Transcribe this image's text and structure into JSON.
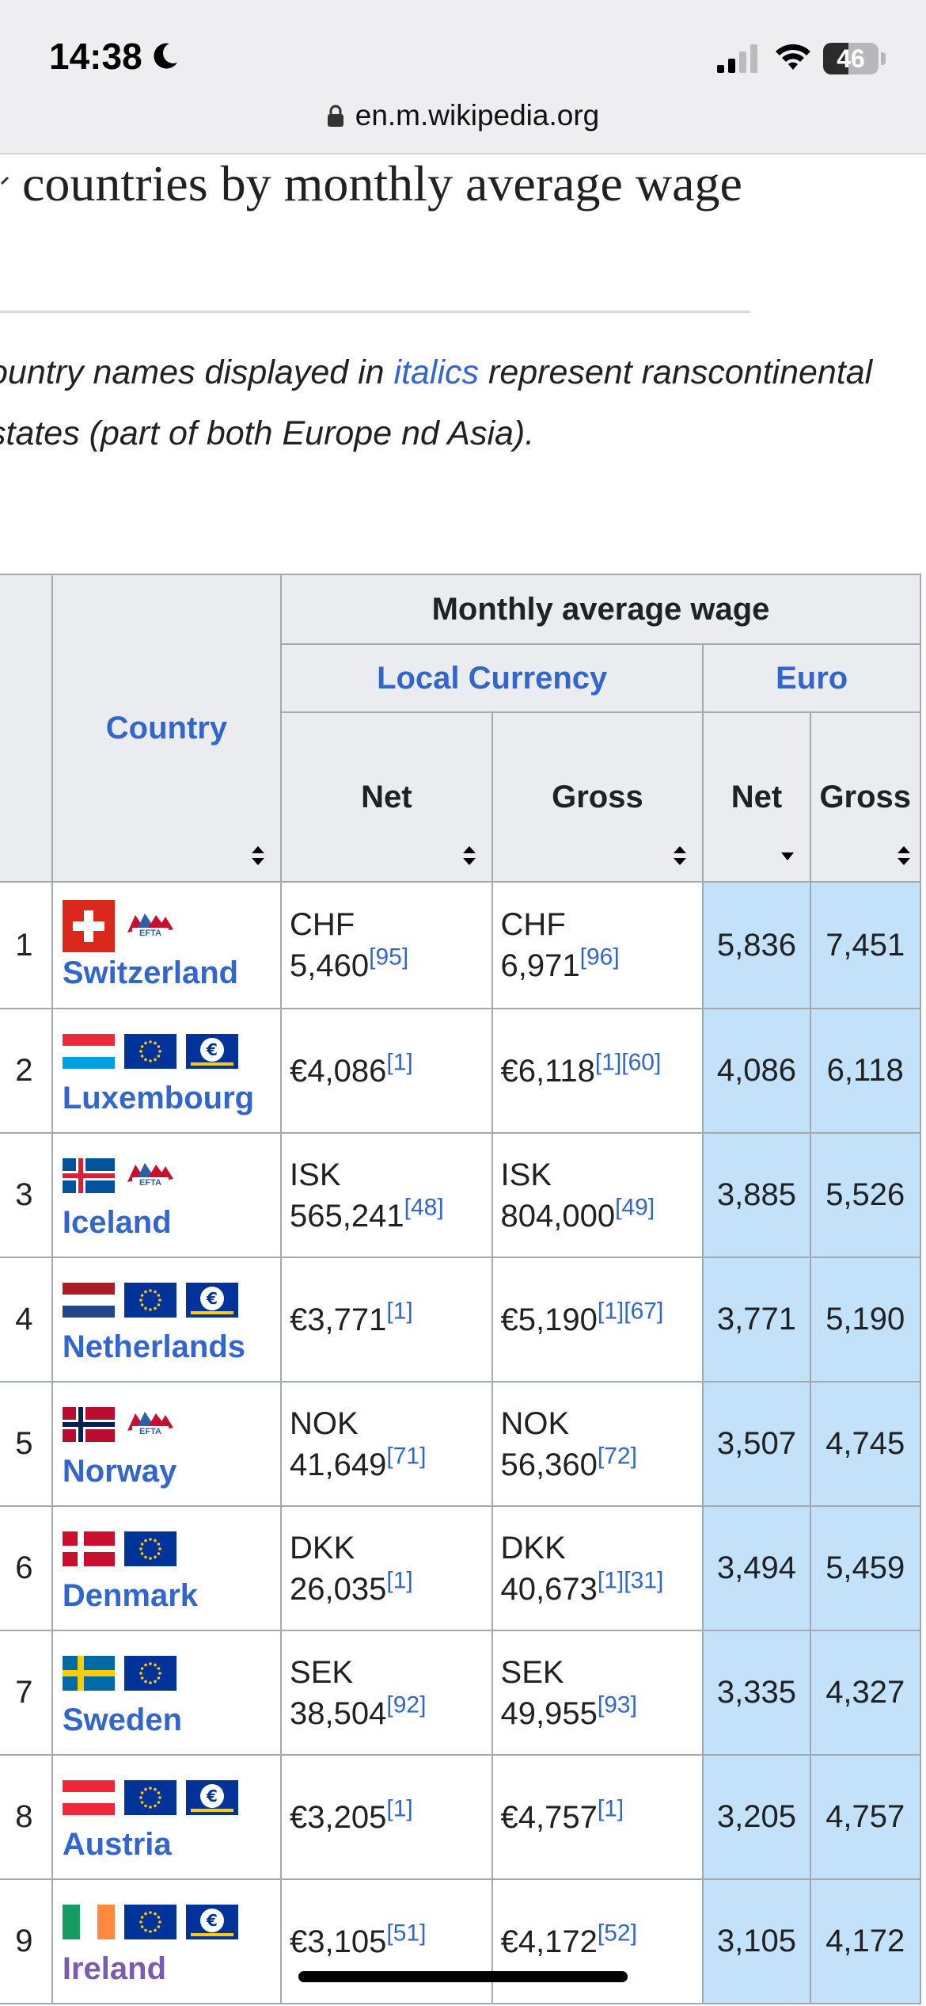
{
  "status_bar": {
    "time": "14:38",
    "battery": "46",
    "battery_level": 0.46
  },
  "url_bar": {
    "domain": "en.m.wikipedia.org"
  },
  "article": {
    "heading": "countries by monthly average wage",
    "note_before": "ountry names displayed in ",
    "note_link": "italics",
    "note_after": " represent ranscontinental states (part of both Europe nd Asia)."
  },
  "table": {
    "header_group": "Monthly average wage",
    "country_header": "Country",
    "local_currency_header": "Local Currency",
    "euro_header": "Euro",
    "net_label": "Net",
    "gross_label": "Gross",
    "rows": [
      {
        "rank": "1",
        "country": "Switzerland",
        "flags": [
          "ch",
          "efta"
        ],
        "net_cur": "CHF",
        "net_val": "5,460",
        "net_ref": "[95]",
        "gross_cur": "CHF",
        "gross_val": "6,971",
        "gross_ref": "[96]",
        "euro_net": "5,836",
        "euro_gross": "7,451"
      },
      {
        "rank": "2",
        "country": "Luxembourg",
        "flags": [
          "lu",
          "eu",
          "euro"
        ],
        "net_cur": "",
        "net_val": "€4,086",
        "net_ref": "[1]",
        "gross_cur": "",
        "gross_val": "€6,118",
        "gross_ref": "[1][60]",
        "euro_net": "4,086",
        "euro_gross": "6,118"
      },
      {
        "rank": "3",
        "country": "Iceland",
        "flags": [
          "is",
          "efta"
        ],
        "net_cur": "ISK",
        "net_val": "565,241",
        "net_ref": "[48]",
        "gross_cur": "ISK",
        "gross_val": "804,000",
        "gross_ref": "[49]",
        "euro_net": "3,885",
        "euro_gross": "5,526"
      },
      {
        "rank": "4",
        "country": "Netherlands",
        "flags": [
          "nl",
          "eu",
          "euro"
        ],
        "net_cur": "",
        "net_val": "€3,771",
        "net_ref": "[1]",
        "gross_cur": "",
        "gross_val": "€5,190",
        "gross_ref": "[1][67]",
        "euro_net": "3,771",
        "euro_gross": "5,190"
      },
      {
        "rank": "5",
        "country": "Norway",
        "flags": [
          "no",
          "efta"
        ],
        "net_cur": "NOK",
        "net_val": "41,649",
        "net_ref": "[71]",
        "gross_cur": "NOK",
        "gross_val": "56,360",
        "gross_ref": "[72]",
        "euro_net": "3,507",
        "euro_gross": "4,745"
      },
      {
        "rank": "6",
        "country": "Denmark",
        "flags": [
          "dk",
          "eu"
        ],
        "net_cur": "DKK",
        "net_val": "26,035",
        "net_ref": "[1]",
        "gross_cur": "DKK",
        "gross_val": "40,673",
        "gross_ref": "[1][31]",
        "euro_net": "3,494",
        "euro_gross": "5,459"
      },
      {
        "rank": "7",
        "country": "Sweden",
        "flags": [
          "se",
          "eu"
        ],
        "net_cur": "SEK",
        "net_val": "38,504",
        "net_ref": "[92]",
        "gross_cur": "SEK",
        "gross_val": "49,955",
        "gross_ref": "[93]",
        "euro_net": "3,335",
        "euro_gross": "4,327"
      },
      {
        "rank": "8",
        "country": "Austria",
        "flags": [
          "at",
          "eu",
          "euro"
        ],
        "net_cur": "",
        "net_val": "€3,205",
        "net_ref": "[1]",
        "gross_cur": "",
        "gross_val": "€4,757",
        "gross_ref": "[1]",
        "euro_net": "3,205",
        "euro_gross": "4,757"
      },
      {
        "rank": "9",
        "country": "Ireland",
        "flags": [
          "ie",
          "eu",
          "euro"
        ],
        "net_cur": "",
        "net_val": "€3,105",
        "net_ref": "[51]",
        "gross_cur": "",
        "gross_val": "€4,172",
        "gross_ref": "[52]",
        "euro_net": "3,105",
        "euro_gross": "4,172",
        "visited": true
      }
    ]
  },
  "colors": {
    "link": "#3366cc",
    "visited_link": "#795cb2",
    "euro_cell_bg": "#c3e1f9",
    "header_bg": "#eaecf0",
    "border": "#a2a9b1"
  }
}
